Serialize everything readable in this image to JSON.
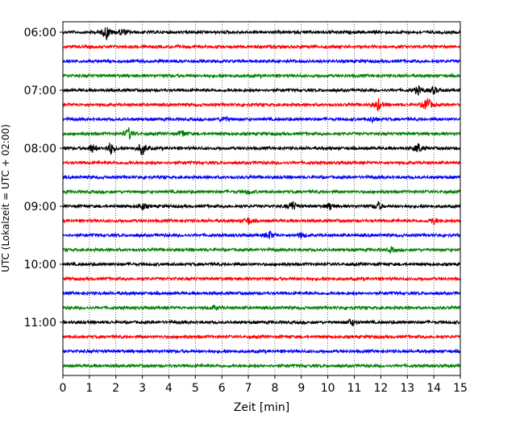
{
  "chart_data": {
    "type": "line",
    "title": "",
    "xlabel": "Zeit  [min]",
    "ylabel": "UTC (Lokalzeit = UTC + 02:00)",
    "xlim": [
      0,
      15
    ],
    "x_ticks": [
      "0",
      "1",
      "2",
      "3",
      "4",
      "5",
      "6",
      "7",
      "8",
      "9",
      "10",
      "11",
      "12",
      "13",
      "14",
      "15"
    ],
    "y_tick_labels": [
      "06:00",
      "07:00",
      "08:00",
      "09:00",
      "10:00",
      "11:00"
    ],
    "grid": "vertical dotted lines at each minute",
    "trace_interval_minutes": 15,
    "trace_count": 24,
    "trace_colors": [
      "#000000",
      "#ff0000",
      "#0000ff",
      "#008000"
    ],
    "events": [
      {
        "trace": 0,
        "minute": 1.65,
        "amp": 1.6
      },
      {
        "trace": 0,
        "minute": 2.25,
        "amp": 0.9
      },
      {
        "trace": 4,
        "minute": 13.4,
        "amp": 1.0
      },
      {
        "trace": 4,
        "minute": 14.0,
        "amp": 0.8
      },
      {
        "trace": 5,
        "minute": 11.9,
        "amp": 1.4
      },
      {
        "trace": 5,
        "minute": 13.75,
        "amp": 1.8
      },
      {
        "trace": 6,
        "minute": 6.1,
        "amp": 0.6
      },
      {
        "trace": 6,
        "minute": 11.7,
        "amp": 0.6
      },
      {
        "trace": 7,
        "minute": 2.5,
        "amp": 1.4
      },
      {
        "trace": 7,
        "minute": 4.5,
        "amp": 0.9
      },
      {
        "trace": 8,
        "minute": 1.1,
        "amp": 1.0
      },
      {
        "trace": 8,
        "minute": 1.8,
        "amp": 1.5
      },
      {
        "trace": 8,
        "minute": 3.0,
        "amp": 1.6
      },
      {
        "trace": 8,
        "minute": 13.4,
        "amp": 1.2
      },
      {
        "trace": 11,
        "minute": 7.0,
        "amp": 0.5
      },
      {
        "trace": 12,
        "minute": 3.0,
        "amp": 0.8
      },
      {
        "trace": 12,
        "minute": 8.65,
        "amp": 1.3
      },
      {
        "trace": 12,
        "minute": 10.1,
        "amp": 0.8
      },
      {
        "trace": 12,
        "minute": 11.9,
        "amp": 0.9
      },
      {
        "trace": 13,
        "minute": 7.0,
        "amp": 0.8
      },
      {
        "trace": 13,
        "minute": 14.0,
        "amp": 0.7
      },
      {
        "trace": 14,
        "minute": 7.8,
        "amp": 0.9
      },
      {
        "trace": 14,
        "minute": 9.0,
        "amp": 0.6
      },
      {
        "trace": 15,
        "minute": 12.4,
        "amp": 0.5
      },
      {
        "trace": 19,
        "minute": 5.7,
        "amp": 0.4
      },
      {
        "trace": 20,
        "minute": 10.9,
        "amp": 0.9
      }
    ]
  }
}
